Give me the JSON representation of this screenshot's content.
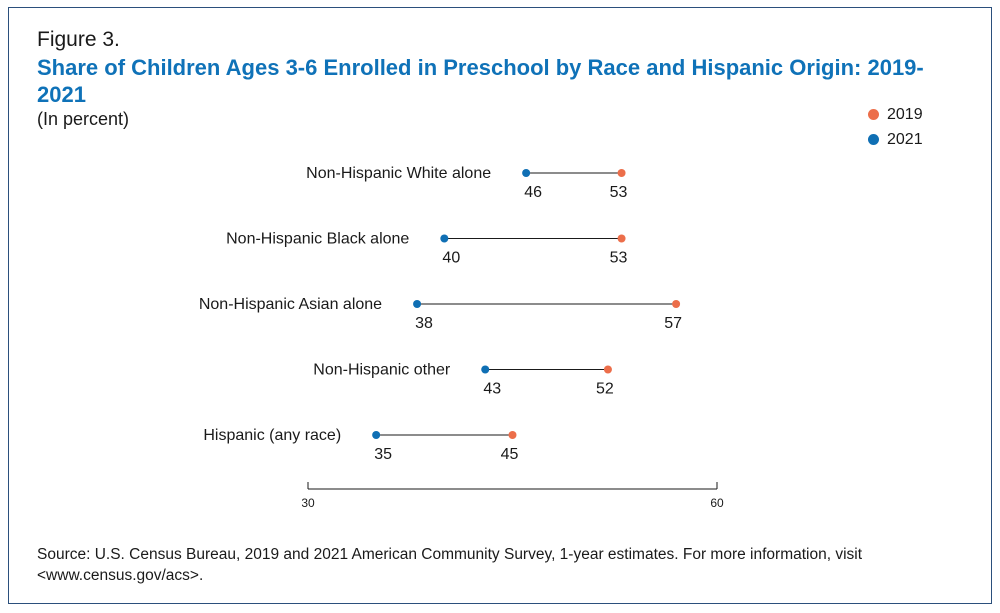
{
  "figure_label": "Figure 3.",
  "title": "Share of Children Ages 3-6 Enrolled in Preschool by Race and Hispanic Origin: 2019-2021",
  "subtitle": "(In percent)",
  "source": "Source: U.S. Census Bureau, 2019 and 2021 American Community Survey, 1-year estimates. For more information, visit <www.census.gov/acs>.",
  "colors": {
    "2019": "#ec6e4a",
    "2021": "#0f6fb4",
    "title": "#0f72b8",
    "frame": "#2b4f7c"
  },
  "chart_data": {
    "type": "dumbbell",
    "categories": [
      "Non-Hispanic White alone",
      "Non-Hispanic Black alone",
      "Non-Hispanic Asian alone",
      "Non-Hispanic other",
      "Hispanic (any race)"
    ],
    "series": [
      {
        "name": "2019",
        "values": [
          53,
          53,
          57,
          52,
          45
        ]
      },
      {
        "name": "2021",
        "values": [
          46,
          40,
          38,
          43,
          35
        ]
      }
    ],
    "xlim": [
      30,
      60
    ],
    "x_ticks": [
      30,
      60
    ],
    "legend_position": "top-right",
    "grid": false
  }
}
